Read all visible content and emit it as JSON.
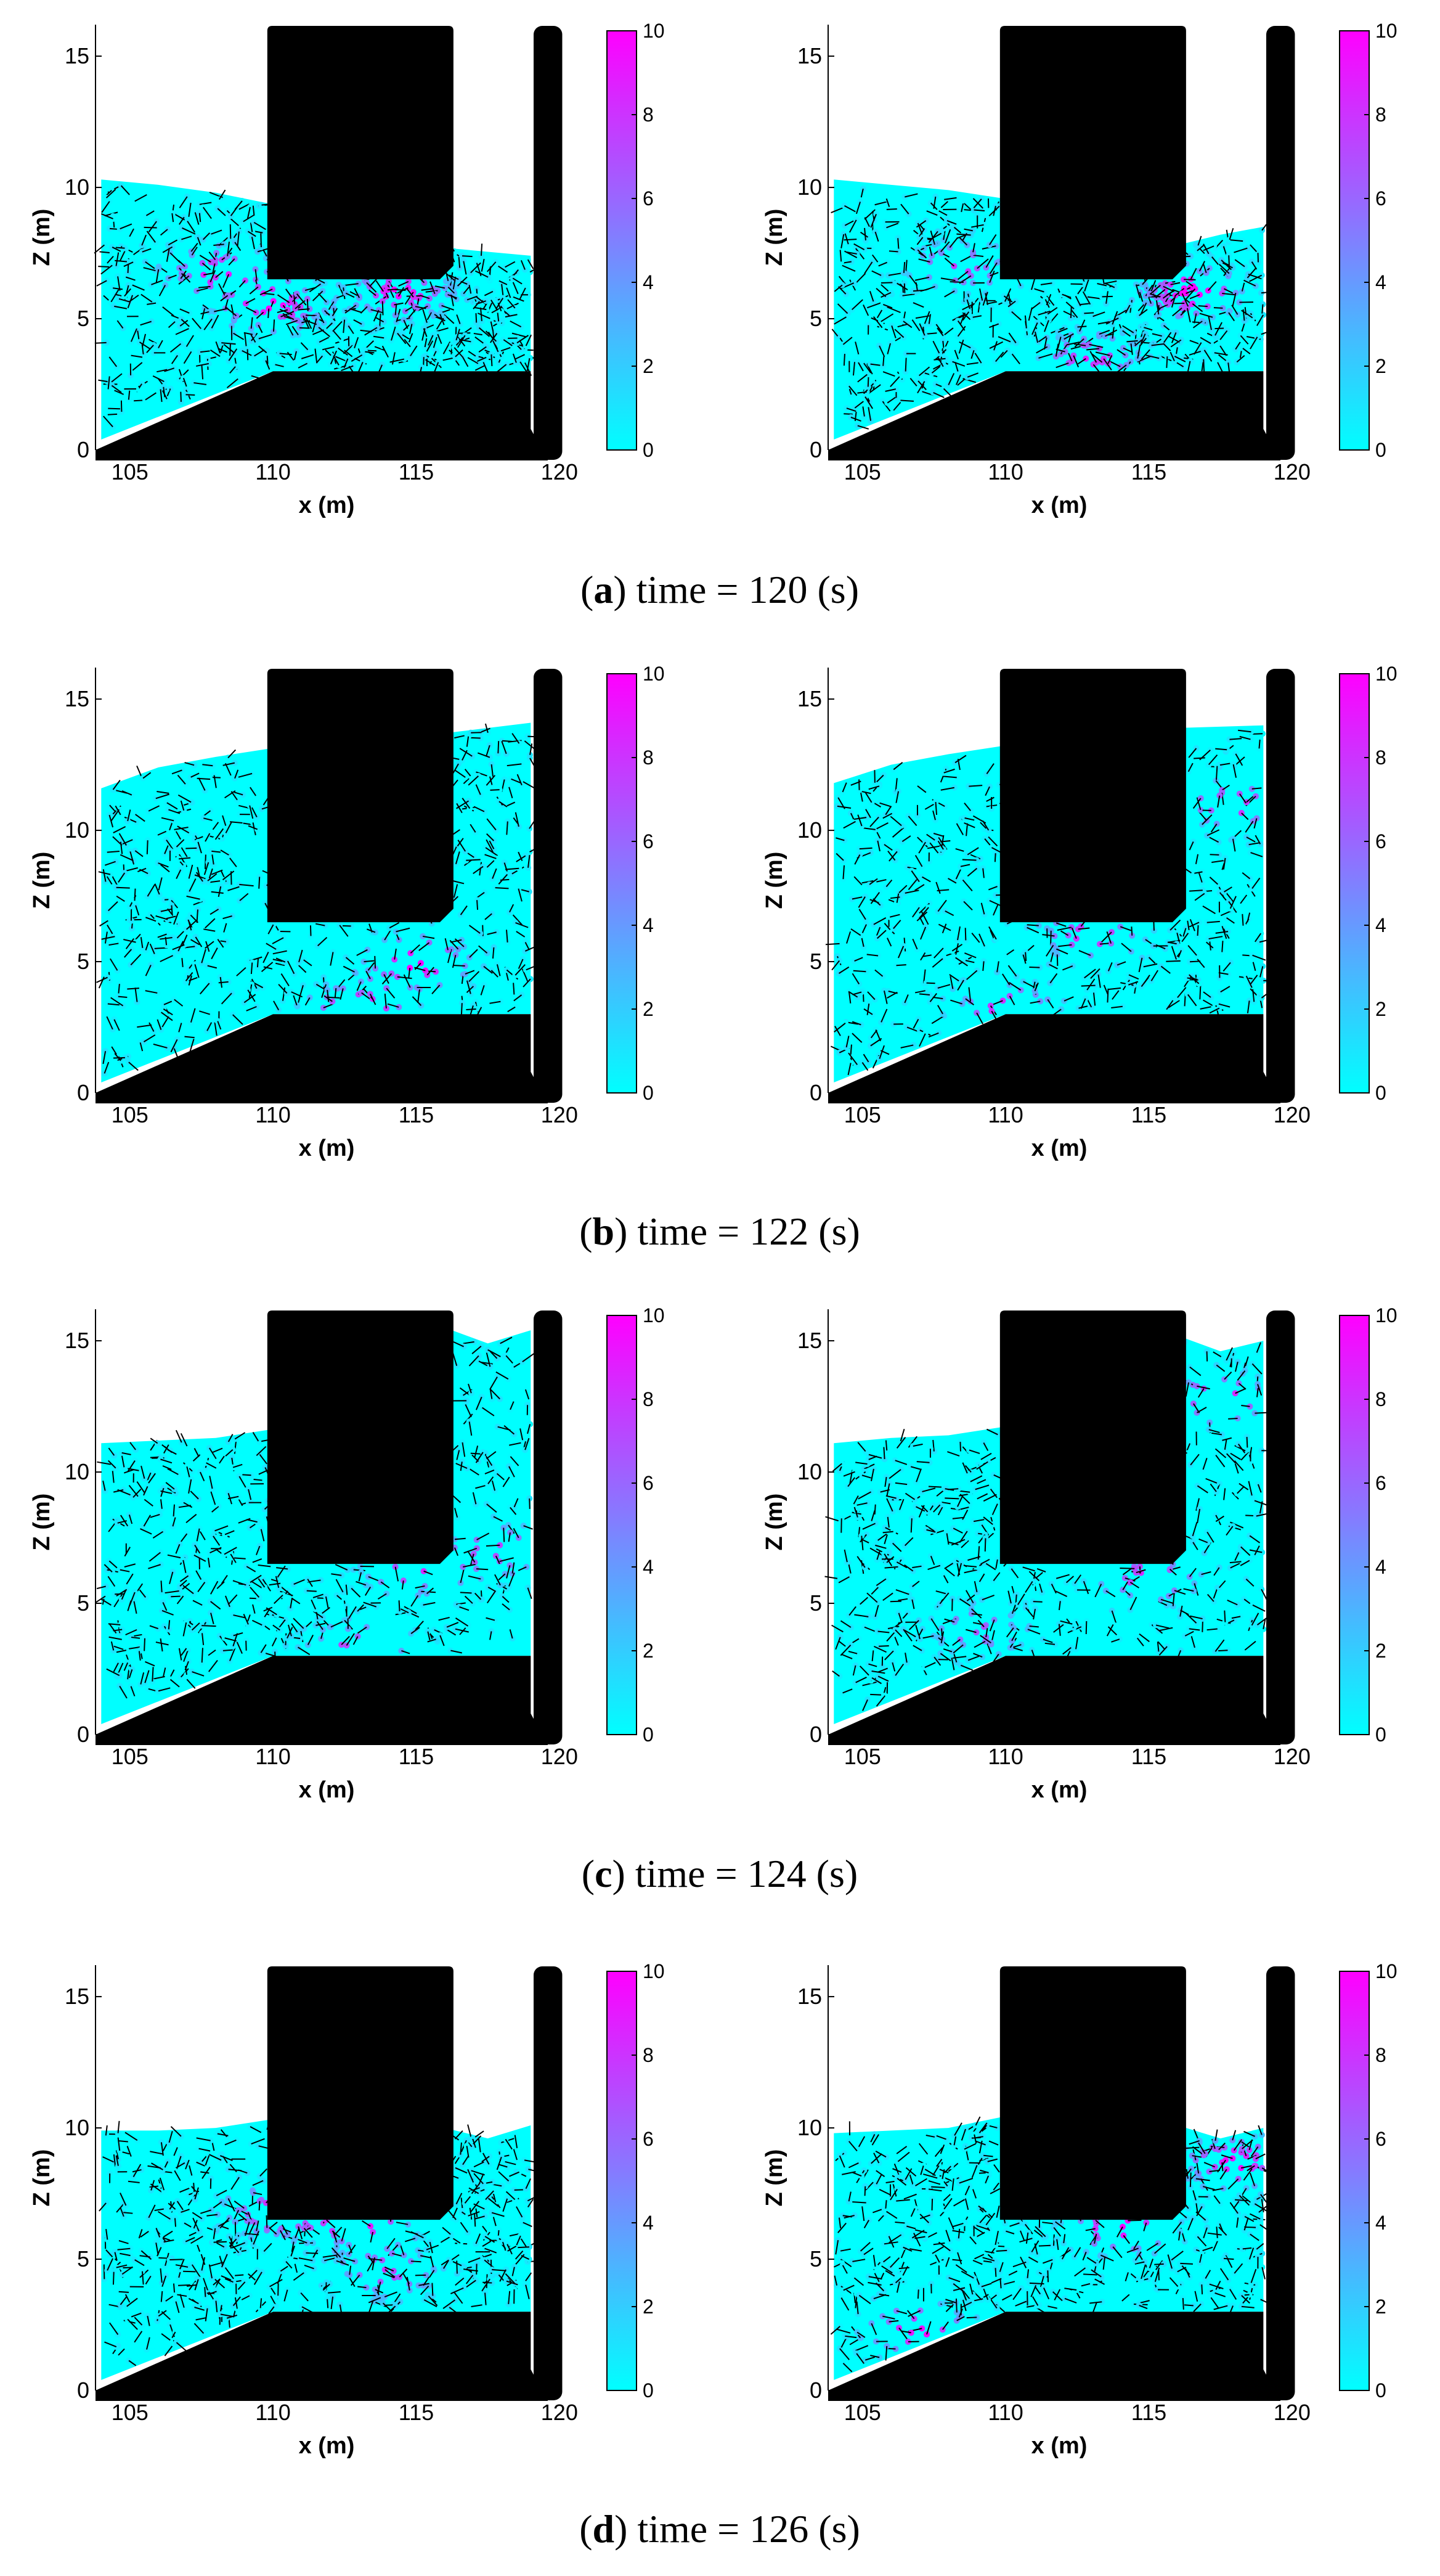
{
  "figure": {
    "rows": [
      {
        "letter": "a",
        "caption_text": " time = 120 (s)"
      },
      {
        "letter": "b",
        "caption_text": " time = 122 (s)"
      },
      {
        "letter": "c",
        "caption_text": " time = 124 (s)"
      },
      {
        "letter": "d",
        "caption_text": " time = 126 (s)"
      }
    ]
  },
  "colors": {
    "colormap_low": "#00ffff",
    "colormap_high": "#ff00ff",
    "structure": "#000000",
    "arrows": "#000000"
  },
  "chart_data": [
    {
      "type": "heatmap",
      "panel": "a-left",
      "time_s": 120,
      "xlabel": "x (m)",
      "ylabel": "Z (m)",
      "xticks": [
        105,
        110,
        115,
        120
      ],
      "yticks": [
        0,
        5,
        10,
        15
      ],
      "xlim": [
        103.8,
        120.8
      ],
      "ylim": [
        0,
        16.2
      ],
      "colorbar": {
        "ticks": [
          0,
          2,
          4,
          6,
          8,
          10
        ],
        "range": [
          0,
          10
        ]
      },
      "free_surface": [
        [
          104,
          10.3
        ],
        [
          106,
          10.1
        ],
        [
          108,
          9.8
        ],
        [
          109.8,
          9.4
        ],
        [
          116,
          7.7
        ],
        [
          119,
          7.4
        ]
      ],
      "hotspots": [
        [
          108,
          6.8,
          8
        ],
        [
          110,
          5.5,
          9
        ],
        [
          114.5,
          6,
          9
        ]
      ]
    },
    {
      "type": "heatmap",
      "panel": "a-right",
      "time_s": 120,
      "xlabel": "x (m)",
      "ylabel": "Z (m)",
      "xticks": [
        105,
        110,
        115,
        120
      ],
      "yticks": [
        0,
        5,
        10,
        15
      ],
      "xlim": [
        103.8,
        120.8
      ],
      "ylim": [
        0,
        16.2
      ],
      "colorbar": {
        "ticks": [
          0,
          2,
          4,
          6,
          8,
          10
        ],
        "range": [
          0,
          10
        ]
      },
      "free_surface": [
        [
          104,
          10.3
        ],
        [
          106,
          10.1
        ],
        [
          108,
          9.9
        ],
        [
          109.8,
          9.6
        ],
        [
          116,
          7.8
        ],
        [
          117.5,
          8.2
        ],
        [
          119,
          8.5
        ]
      ],
      "hotspots": [
        [
          108.5,
          7,
          7
        ],
        [
          116.5,
          6,
          10
        ],
        [
          113,
          3.5,
          8
        ]
      ]
    },
    {
      "type": "heatmap",
      "panel": "b-left",
      "time_s": 122,
      "xlabel": "x (m)",
      "ylabel": "Z (m)",
      "xticks": [
        105,
        110,
        115,
        120
      ],
      "yticks": [
        0,
        5,
        10,
        15
      ],
      "xlim": [
        103.8,
        120.8
      ],
      "ylim": [
        0,
        16.2
      ],
      "colorbar": {
        "ticks": [
          0,
          2,
          4,
          6,
          8,
          10
        ],
        "range": [
          0,
          10
        ]
      },
      "free_surface": [
        [
          104,
          11.6
        ],
        [
          106,
          12.4
        ],
        [
          108,
          12.8
        ],
        [
          109.8,
          13.1
        ],
        [
          116,
          13.7
        ],
        [
          119,
          14.1
        ]
      ],
      "hotspots": [
        [
          115,
          5,
          10
        ],
        [
          113,
          3.2,
          9
        ]
      ]
    },
    {
      "type": "heatmap",
      "panel": "b-right",
      "time_s": 122,
      "xlabel": "x (m)",
      "ylabel": "Z (m)",
      "xticks": [
        105,
        110,
        115,
        120
      ],
      "yticks": [
        0,
        5,
        10,
        15
      ],
      "xlim": [
        103.8,
        120.8
      ],
      "ylim": [
        0,
        16.2
      ],
      "colorbar": {
        "ticks": [
          0,
          2,
          4,
          6,
          8,
          10
        ],
        "range": [
          0,
          10
        ]
      },
      "free_surface": [
        [
          104,
          11.8
        ],
        [
          106,
          12.5
        ],
        [
          108,
          12.9
        ],
        [
          109.8,
          13.2
        ],
        [
          116,
          13.9
        ],
        [
          119,
          14.0
        ]
      ],
      "hotspots": [
        [
          118,
          11,
          8
        ],
        [
          113,
          6,
          8
        ],
        [
          110,
          3.2,
          8
        ]
      ]
    },
    {
      "type": "heatmap",
      "panel": "c-left",
      "time_s": 124,
      "xlabel": "x (m)",
      "ylabel": "Z (m)",
      "xticks": [
        105,
        110,
        115,
        120
      ],
      "yticks": [
        0,
        5,
        10,
        15
      ],
      "xlim": [
        103.8,
        120.8
      ],
      "ylim": [
        0,
        16.2
      ],
      "colorbar": {
        "ticks": [
          0,
          2,
          4,
          6,
          8,
          10
        ],
        "range": [
          0,
          10
        ]
      },
      "free_surface": [
        [
          104,
          11.1
        ],
        [
          106,
          11.2
        ],
        [
          108,
          11.3
        ],
        [
          109.8,
          11.6
        ],
        [
          116,
          15.5
        ],
        [
          117.5,
          14.9
        ],
        [
          119,
          15.4
        ]
      ],
      "hotspots": [
        [
          115,
          6.3,
          8
        ],
        [
          118,
          7,
          7
        ],
        [
          113,
          3.3,
          7
        ]
      ]
    },
    {
      "type": "heatmap",
      "panel": "c-right",
      "time_s": 124,
      "xlabel": "x (m)",
      "ylabel": "Z (m)",
      "xticks": [
        105,
        110,
        115,
        120
      ],
      "yticks": [
        0,
        5,
        10,
        15
      ],
      "xlim": [
        103.8,
        120.8
      ],
      "ylim": [
        0,
        16.2
      ],
      "colorbar": {
        "ticks": [
          0,
          2,
          4,
          6,
          8,
          10
        ],
        "range": [
          0,
          10
        ]
      },
      "free_surface": [
        [
          104,
          11.1
        ],
        [
          106,
          11.3
        ],
        [
          108,
          11.4
        ],
        [
          109.8,
          11.7
        ],
        [
          116,
          15.2
        ],
        [
          117.5,
          14.6
        ],
        [
          119,
          15.0
        ]
      ],
      "hotspots": [
        [
          117.5,
          12.8,
          9
        ],
        [
          115,
          6,
          8
        ],
        [
          109,
          4,
          6
        ]
      ]
    },
    {
      "type": "heatmap",
      "panel": "d-left",
      "time_s": 126,
      "xlabel": "x (m)",
      "ylabel": "Z (m)",
      "xticks": [
        105,
        110,
        115,
        120
      ],
      "yticks": [
        0,
        5,
        10,
        15
      ],
      "xlim": [
        103.8,
        120.8
      ],
      "ylim": [
        0,
        16.2
      ],
      "colorbar": {
        "ticks": [
          0,
          2,
          4,
          6,
          8,
          10
        ],
        "range": [
          0,
          10
        ]
      },
      "free_surface": [
        [
          104,
          9.9
        ],
        [
          106,
          9.9
        ],
        [
          108,
          10.0
        ],
        [
          109.8,
          10.3
        ],
        [
          116,
          10.0
        ],
        [
          117.5,
          9.6
        ],
        [
          119,
          10.1
        ]
      ],
      "hotspots": [
        [
          113,
          6.5,
          10
        ],
        [
          110,
          6.8,
          8
        ],
        [
          114,
          4.5,
          7
        ]
      ]
    },
    {
      "type": "heatmap",
      "panel": "d-right",
      "time_s": 126,
      "xlabel": "x (m)",
      "ylabel": "Z (m)",
      "xticks": [
        105,
        110,
        115,
        120
      ],
      "yticks": [
        0,
        5,
        10,
        15
      ],
      "xlim": [
        103.8,
        120.8
      ],
      "ylim": [
        0,
        16.2
      ],
      "colorbar": {
        "ticks": [
          0,
          2,
          4,
          6,
          8,
          10
        ],
        "range": [
          0,
          10
        ]
      },
      "free_surface": [
        [
          104,
          9.8
        ],
        [
          106,
          9.9
        ],
        [
          108,
          10.0
        ],
        [
          109.8,
          10.4
        ],
        [
          116,
          10.1
        ],
        [
          117.5,
          9.6
        ],
        [
          119,
          10.0
        ]
      ],
      "hotspots": [
        [
          114,
          6.2,
          10
        ],
        [
          118,
          8.7,
          9
        ],
        [
          107,
          2.3,
          9
        ]
      ]
    }
  ]
}
